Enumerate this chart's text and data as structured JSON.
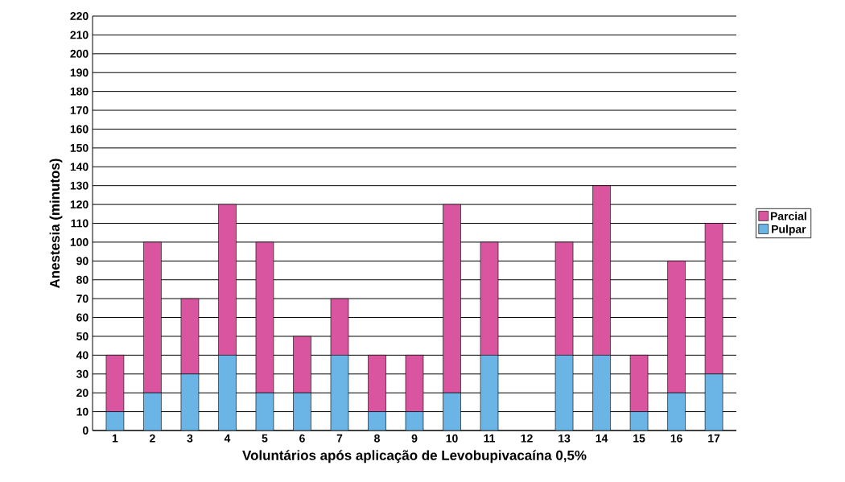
{
  "chart_data": {
    "type": "bar",
    "stacked": true,
    "xlabel": "Voluntários após aplicação de Levobupivacaína 0,5%",
    "ylabel": "Anestesia (minutos)",
    "categories": [
      "1",
      "2",
      "3",
      "4",
      "5",
      "6",
      "7",
      "8",
      "9",
      "10",
      "11",
      "12",
      "13",
      "14",
      "15",
      "16",
      "17"
    ],
    "series": [
      {
        "name": "Pulpar",
        "color": "#6ab4e6",
        "values": [
          10,
          20,
          30,
          40,
          20,
          20,
          40,
          10,
          10,
          20,
          40,
          0,
          40,
          40,
          10,
          20,
          30
        ]
      },
      {
        "name": "Parcial",
        "color": "#d9559f",
        "values": [
          30,
          80,
          40,
          80,
          80,
          30,
          30,
          30,
          30,
          100,
          60,
          0,
          60,
          90,
          30,
          70,
          80
        ]
      }
    ],
    "ylim": [
      0,
      220
    ],
    "yticks": [
      0,
      10,
      20,
      30,
      40,
      50,
      60,
      70,
      80,
      90,
      100,
      110,
      120,
      130,
      140,
      150,
      160,
      170,
      180,
      190,
      200,
      210,
      220
    ],
    "grid": "y",
    "legend": "right"
  }
}
